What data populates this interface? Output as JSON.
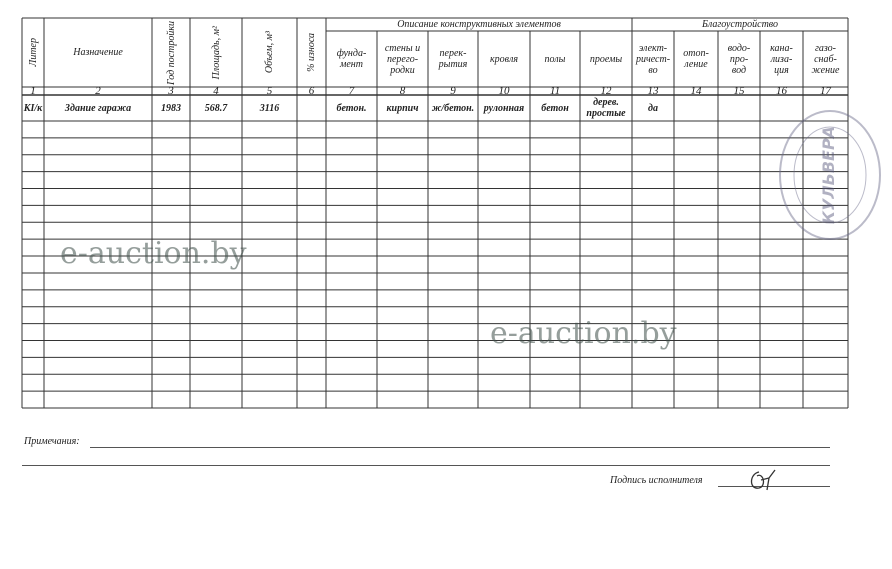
{
  "watermark": "e-auction.by",
  "table": {
    "groups": [
      {
        "label": "Описание конструктивных элементов",
        "from": 6,
        "to": 11
      },
      {
        "label": "Благоустройство",
        "from": 12,
        "to": 16
      }
    ],
    "headers": [
      {
        "label": "Литер",
        "vertical": true
      },
      {
        "label": "Назначение",
        "vertical": false
      },
      {
        "label": "Год постройки",
        "vertical": true
      },
      {
        "label": "Площадь, м²",
        "vertical": true
      },
      {
        "label": "Объем, м³",
        "vertical": true
      },
      {
        "label": "% износа",
        "vertical": true
      },
      {
        "label": "фунда-\nмент",
        "vertical": false
      },
      {
        "label": "стены и\nперего-\nродки",
        "vertical": false
      },
      {
        "label": "перек-\nрытия",
        "vertical": false
      },
      {
        "label": "кровля",
        "vertical": false
      },
      {
        "label": "полы",
        "vertical": false
      },
      {
        "label": "проемы",
        "vertical": false
      },
      {
        "label": "элект-\nричест-\nво",
        "vertical": false
      },
      {
        "label": "отоп-\nление",
        "vertical": false
      },
      {
        "label": "водо-\nпро-\nвод",
        "vertical": false
      },
      {
        "label": "кана-\nлиза-\nция",
        "vertical": false
      },
      {
        "label": "газо-\nснаб-\nжение",
        "vertical": false
      }
    ],
    "numbers": [
      "1",
      "2",
      "3",
      "4",
      "5",
      "6",
      "7",
      "8",
      "9",
      "10",
      "11",
      "12",
      "13",
      "14",
      "15",
      "16",
      "17"
    ],
    "rows": [
      [
        "КI/к",
        "Здание гаража",
        "1983",
        "568.7",
        "3116",
        "",
        "бетон.",
        "кирпич",
        "ж/бетон.",
        "рулонная",
        "бетон",
        "дерев.\nпростые",
        "да",
        "",
        "",
        "",
        ""
      ]
    ],
    "empty_rows": 17
  },
  "footer": {
    "notes_label": "Примечания:",
    "signature_label": "Подпись исполнителя"
  },
  "stamp_text": "КУЛЬВЕРА"
}
